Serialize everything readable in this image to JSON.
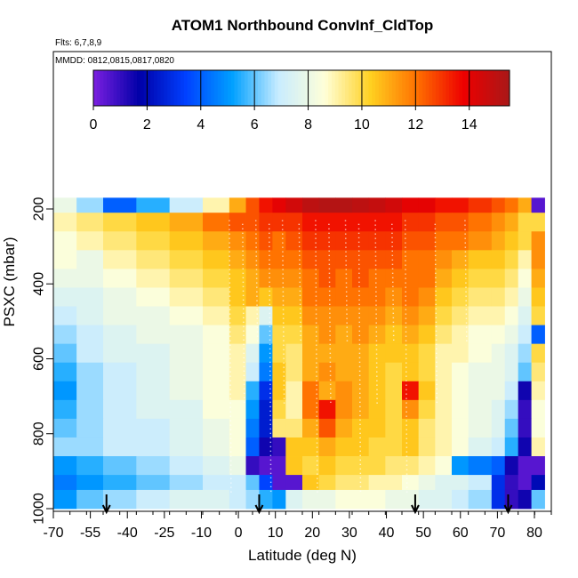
{
  "chart_data": {
    "type": "heatmap",
    "title": "ATOM1 Northbound ConvInf_CldTop",
    "notes": [
      "Flts: 6,7,8,9",
      "MMDD: 0812,0815,0817,0820"
    ],
    "xlabel": "Latitude (deg N)",
    "ylabel": "PSXC (mbar)",
    "x_ticks": [
      "-70",
      "-55",
      "-40",
      "-25",
      "-10",
      "0",
      "10",
      "20",
      "30",
      "40",
      "50",
      "60",
      "70",
      "80"
    ],
    "y_ticks": [
      "200",
      "400",
      "600",
      "800",
      "1000"
    ],
    "colorbar": {
      "range": [
        0,
        15.5
      ],
      "ticks": [
        "0",
        "2",
        "4",
        "6",
        "8",
        "10",
        "12",
        "14"
      ],
      "colors": [
        "#7b1fe0",
        "#0000a8",
        "#0040ff",
        "#00a0ff",
        "#c8ecff",
        "#ffffd8",
        "#ffd020",
        "#ff7000",
        "#ee0000",
        "#a81818"
      ]
    },
    "xlim": [
      -70,
      80
    ],
    "ylim": [
      1000,
      150
    ],
    "flight_markers_lat": [
      -54,
      -8,
      39,
      67
    ],
    "column_edges_lat": [
      -70,
      -63,
      -55,
      -45,
      -35,
      -25,
      -17,
      -12,
      -8,
      -4,
      0,
      5,
      10,
      15,
      20,
      25,
      30,
      35,
      40,
      45,
      50,
      55,
      62,
      66,
      70,
      74,
      78
    ],
    "level_edges_mbar": [
      170,
      210,
      260,
      310,
      360,
      410,
      460,
      510,
      560,
      610,
      660,
      710,
      760,
      810,
      860,
      910,
      950,
      1000
    ],
    "values": [
      [
        8.0,
        6.5,
        4.0,
        5.5,
        7.0,
        9.0,
        11.0,
        12.5,
        13.5,
        14.0,
        14.5,
        15.0,
        15.2,
        15.2,
        15.0,
        14.8,
        14.5,
        14.0,
        14.0,
        13.5,
        13.5,
        13.0,
        12.5,
        12.0,
        11.0,
        0.5
      ],
      [
        9.0,
        9.5,
        10.0,
        10.5,
        11.0,
        12.0,
        12.5,
        12.5,
        13.0,
        13.0,
        13.0,
        13.5,
        13.5,
        13.5,
        13.5,
        13.5,
        13.5,
        13.0,
        13.0,
        12.5,
        12.5,
        12.0,
        11.5,
        11.0,
        10.0,
        10.0
      ],
      [
        8.5,
        9.0,
        9.5,
        10.0,
        10.5,
        11.0,
        11.5,
        12.0,
        12.5,
        12.0,
        12.5,
        13.0,
        13.0,
        13.0,
        13.0,
        13.0,
        13.0,
        12.5,
        12.5,
        12.0,
        12.0,
        11.5,
        11.0,
        10.5,
        10.0,
        11.5
      ],
      [
        8.5,
        8.0,
        9.0,
        9.5,
        10.0,
        10.5,
        11.0,
        11.5,
        12.0,
        12.0,
        12.0,
        12.5,
        12.5,
        12.5,
        12.5,
        12.5,
        12.5,
        12.0,
        12.0,
        11.5,
        11.0,
        10.5,
        10.5,
        10.0,
        9.0,
        11.5
      ],
      [
        8.0,
        8.0,
        8.5,
        9.0,
        9.5,
        10.0,
        10.5,
        11.0,
        11.5,
        11.5,
        11.5,
        12.0,
        12.5,
        12.0,
        12.5,
        12.0,
        12.0,
        12.0,
        12.0,
        11.0,
        10.5,
        10.0,
        10.0,
        9.5,
        8.5,
        11.0
      ],
      [
        7.5,
        7.5,
        8.0,
        8.5,
        9.0,
        9.5,
        10.5,
        11.0,
        10.5,
        11.0,
        11.0,
        12.0,
        12.0,
        12.0,
        12.0,
        12.0,
        11.5,
        12.0,
        11.5,
        10.5,
        10.0,
        9.5,
        9.5,
        9.0,
        8.0,
        10.5
      ],
      [
        7.0,
        7.5,
        8.0,
        8.0,
        8.5,
        9.0,
        10.0,
        9.0,
        7.5,
        10.5,
        10.5,
        11.5,
        11.5,
        11.5,
        11.5,
        11.5,
        11.0,
        11.5,
        11.0,
        10.0,
        9.5,
        9.0,
        9.0,
        8.5,
        7.5,
        10.0
      ],
      [
        6.5,
        7.0,
        7.5,
        8.0,
        8.0,
        8.5,
        9.5,
        8.5,
        6.0,
        10.0,
        10.0,
        11.0,
        11.5,
        11.0,
        11.5,
        11.0,
        10.5,
        11.0,
        10.5,
        9.5,
        9.0,
        8.5,
        8.5,
        8.0,
        7.0,
        4.0
      ],
      [
        6.0,
        7.0,
        7.5,
        7.5,
        8.0,
        8.5,
        9.0,
        7.5,
        5.0,
        10.0,
        9.5,
        11.0,
        11.0,
        11.0,
        11.0,
        10.5,
        10.5,
        10.5,
        10.0,
        9.0,
        9.0,
        8.5,
        8.0,
        7.5,
        6.5,
        10.0
      ],
      [
        5.5,
        6.5,
        7.0,
        7.5,
        8.0,
        8.5,
        9.0,
        7.0,
        4.5,
        10.5,
        9.5,
        11.0,
        11.5,
        11.0,
        11.0,
        10.5,
        10.0,
        10.5,
        10.0,
        9.0,
        8.5,
        8.0,
        8.0,
        7.5,
        6.0,
        9.5
      ],
      [
        5.0,
        6.5,
        7.0,
        7.5,
        8.0,
        8.5,
        9.0,
        5.5,
        3.0,
        10.5,
        9.0,
        12.0,
        11.0,
        11.5,
        11.0,
        10.5,
        10.0,
        13.5,
        10.5,
        9.0,
        8.5,
        8.0,
        8.0,
        7.0,
        1.5,
        9.0
      ],
      [
        5.5,
        6.5,
        7.0,
        7.5,
        7.5,
        8.5,
        8.5,
        5.0,
        2.5,
        10.0,
        9.0,
        12.0,
        13.5,
        11.5,
        11.0,
        10.5,
        10.0,
        11.5,
        10.0,
        9.0,
        8.5,
        8.0,
        7.5,
        6.5,
        1.0,
        8.5
      ],
      [
        6.0,
        6.5,
        7.0,
        7.0,
        7.5,
        8.0,
        8.5,
        4.5,
        2.5,
        9.5,
        9.5,
        11.0,
        12.5,
        11.0,
        10.5,
        10.5,
        10.0,
        10.5,
        9.5,
        9.0,
        8.5,
        8.0,
        7.5,
        6.0,
        1.0,
        8.5
      ],
      [
        6.5,
        6.5,
        7.0,
        7.0,
        7.5,
        8.0,
        8.5,
        4.0,
        1.5,
        1.0,
        10.5,
        10.5,
        11.0,
        10.5,
        10.5,
        10.0,
        10.0,
        10.5,
        9.5,
        9.0,
        8.5,
        7.5,
        7.0,
        5.5,
        1.5,
        9.0
      ],
      [
        5.0,
        5.5,
        6.0,
        6.5,
        7.0,
        7.5,
        8.0,
        1.0,
        0.5,
        0.5,
        10.5,
        10.0,
        10.5,
        10.0,
        10.0,
        10.0,
        9.5,
        9.5,
        9.0,
        8.5,
        5.0,
        4.5,
        4.0,
        1.5,
        0.5,
        0.5
      ],
      [
        4.5,
        5.0,
        5.5,
        6.0,
        6.5,
        7.0,
        7.0,
        6.0,
        3.5,
        0.5,
        0.5,
        10.5,
        10.0,
        9.5,
        9.5,
        9.0,
        9.0,
        8.5,
        8.0,
        7.5,
        7.5,
        7.0,
        3.0,
        1.0,
        0.5,
        2.0
      ],
      [
        5.0,
        6.0,
        6.5,
        7.0,
        7.5,
        7.5,
        7.0,
        6.5,
        5.5,
        5.0,
        7.5,
        8.0,
        8.0,
        8.5,
        8.5,
        8.5,
        8.0,
        8.0,
        7.5,
        7.5,
        7.0,
        6.5,
        3.0,
        1.0,
        1.5,
        6.0
      ]
    ]
  }
}
